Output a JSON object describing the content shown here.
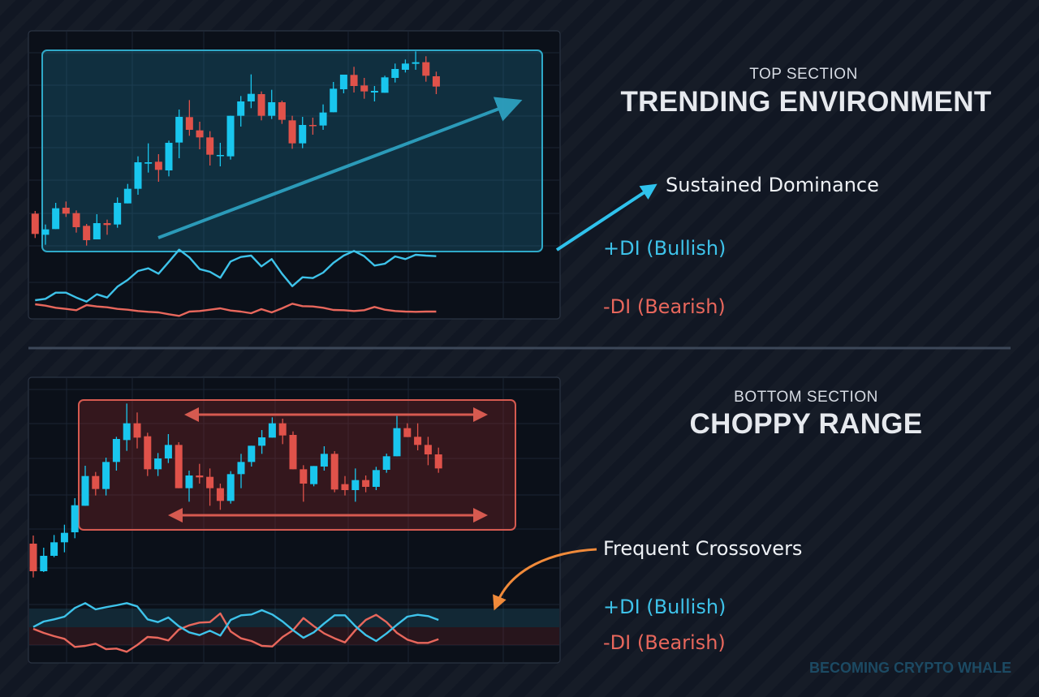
{
  "colors": {
    "bull": "#19c6ee",
    "bear": "#e0524a",
    "plus_di": "#3ec3ea",
    "minus_di": "#e8675c",
    "accent_arrow": "#f08a3a",
    "background": "#111723"
  },
  "top": {
    "kicker": "TOP SECTION",
    "title": "TRENDING ENVIRONMENT",
    "callout": "Sustained Dominance",
    "plus_di_label": "+DI (Bullish)",
    "minus_di_label": "-DI (Bearish)"
  },
  "bottom": {
    "kicker": "BOTTOM SECTION",
    "title": "CHOPPY RANGE",
    "callout": "Frequent Crossovers",
    "plus_di_label": "+DI (Bullish)",
    "minus_di_label": "-DI (Bearish)"
  },
  "watermark": "BECOMING CRYPTO WHALE",
  "chart_data": [
    {
      "type": "candlestick",
      "panel": "top",
      "candles_ohlc": [
        [
          30.0,
          31.0,
          21.0,
          22.5
        ],
        [
          22.2,
          26.0,
          18.5,
          24.2
        ],
        [
          24.3,
          34.0,
          24.3,
          32.0
        ],
        [
          32.2,
          34.5,
          28.8,
          30.0
        ],
        [
          30.2,
          31.2,
          23.0,
          25.0
        ],
        [
          25.5,
          26.2,
          18.2,
          20.2
        ],
        [
          20.5,
          29.8,
          20.5,
          26.5
        ],
        [
          26.5,
          27.8,
          22.2,
          25.8
        ],
        [
          26.0,
          36.0,
          24.8,
          34.0
        ],
        [
          33.8,
          41.0,
          33.8,
          39.2
        ],
        [
          39.2,
          51.2,
          37.0,
          49.0
        ],
        [
          48.5,
          56.0,
          45.2,
          49.0
        ],
        [
          49.2,
          52.0,
          41.8,
          46.2
        ],
        [
          46.0,
          57.0,
          43.8,
          56.2
        ],
        [
          56.3,
          68.5,
          50.5,
          65.8
        ],
        [
          65.7,
          72.0,
          58.8,
          61.0
        ],
        [
          60.8,
          64.0,
          53.8,
          58.2
        ],
        [
          58.2,
          60.5,
          47.8,
          51.8
        ],
        [
          51.3,
          56.2,
          47.5,
          51.7
        ],
        [
          51.2,
          66.2,
          50.0,
          66.2
        ],
        [
          66.2,
          73.5,
          62.2,
          71.5
        ],
        [
          71.5,
          81.5,
          69.0,
          74.3
        ],
        [
          74.2,
          75.2,
          64.5,
          66.2
        ],
        [
          66.2,
          75.8,
          65.0,
          71.2
        ],
        [
          71.2,
          71.8,
          63.2,
          64.7
        ],
        [
          64.5,
          66.2,
          54.0,
          56.0
        ],
        [
          56.0,
          65.8,
          54.2,
          62.8
        ],
        [
          62.8,
          65.5,
          59.2,
          62.4
        ],
        [
          62.6,
          70.4,
          61.0,
          67.4
        ],
        [
          67.5,
          78.7,
          67.5,
          76.2
        ],
        [
          76.0,
          81.4,
          74.5,
          81.4
        ],
        [
          81.3,
          84.3,
          74.8,
          77.2
        ],
        [
          77.4,
          80.2,
          72.5,
          75.2
        ],
        [
          74.8,
          77.2,
          71.5,
          75.4
        ],
        [
          74.7,
          81.0,
          74.7,
          80.4
        ],
        [
          80.2,
          85.5,
          78.5,
          83.5
        ],
        [
          83.2,
          87.0,
          82.2,
          85.5
        ],
        [
          85.4,
          90.0,
          83.2,
          86.0
        ],
        [
          86.0,
          88.2,
          78.8,
          81.0
        ],
        [
          80.8,
          82.5,
          74.2,
          77.0
        ]
      ],
      "plus_di": [
        8.0,
        8.5,
        10.8,
        10.8,
        9.0,
        7.5,
        10.2,
        9.0,
        13.0,
        15.5,
        18.8,
        19.8,
        17.8,
        22.2,
        26.7,
        23.8,
        19.5,
        18.5,
        16.3,
        22.3,
        24.0,
        24.5,
        20.5,
        23.2,
        17.8,
        13.2,
        16.5,
        16.2,
        18.2,
        21.8,
        24.5,
        26.2,
        24.3,
        20.8,
        21.5,
        24.2,
        23.2,
        24.8,
        24.5,
        24.3
      ],
      "minus_di": [
        6.5,
        6.0,
        5.2,
        4.8,
        4.3,
        6.2,
        5.7,
        5.4,
        4.8,
        4.5,
        4.0,
        3.7,
        3.5,
        2.8,
        2.2,
        3.8,
        4.0,
        4.5,
        5.0,
        4.2,
        3.8,
        3.2,
        4.7,
        3.5,
        5.0,
        6.7,
        5.8,
        5.7,
        5.2,
        4.4,
        4.3,
        4.0,
        4.3,
        5.5,
        4.5,
        4.0,
        3.8,
        3.7,
        3.8,
        3.8
      ]
    },
    {
      "type": "candlestick",
      "panel": "bottom",
      "candles_ohlc": [
        [
          37.0,
          40.0,
          24.5,
          26.8
        ],
        [
          26.8,
          35.5,
          26.5,
          32.5
        ],
        [
          32.5,
          40.2,
          32.0,
          37.5
        ],
        [
          37.5,
          44.0,
          33.8,
          41.0
        ],
        [
          41.2,
          53.8,
          39.0,
          51.2
        ],
        [
          51.0,
          65.8,
          51.0,
          62.0
        ],
        [
          62.0,
          63.5,
          54.8,
          57.2
        ],
        [
          57.2,
          68.8,
          54.8,
          67.2
        ],
        [
          67.2,
          76.5,
          64.0,
          75.7
        ],
        [
          75.3,
          88.8,
          71.3,
          81.5
        ],
        [
          81.5,
          85.5,
          72.2,
          76.2
        ],
        [
          76.7,
          78.0,
          62.0,
          64.5
        ],
        [
          64.5,
          70.5,
          62.0,
          68.5
        ],
        [
          68.5,
          77.5,
          66.8,
          73.5
        ],
        [
          73.5,
          74.5,
          57.5,
          57.5
        ],
        [
          57.5,
          64.0,
          52.5,
          62.2
        ],
        [
          62.2,
          66.5,
          59.2,
          61.5
        ],
        [
          61.7,
          64.8,
          51.0,
          57.5
        ],
        [
          57.5,
          59.2,
          49.5,
          52.8
        ],
        [
          52.8,
          63.8,
          51.8,
          62.7
        ],
        [
          62.7,
          70.2,
          57.5,
          67.2
        ],
        [
          67.2,
          73.2,
          65.5,
          73.2
        ],
        [
          73.2,
          79.0,
          70.2,
          76.3
        ],
        [
          76.2,
          83.7,
          76.2,
          81.5
        ],
        [
          81.5,
          83.2,
          73.8,
          77.0
        ],
        [
          77.2,
          78.5,
          64.5,
          64.5
        ],
        [
          64.5,
          66.0,
          52.5,
          59.2
        ],
        [
          59.0,
          65.7,
          58.2,
          65.7
        ],
        [
          65.5,
          73.0,
          64.0,
          70.2
        ],
        [
          70.2,
          71.2,
          56.0,
          57.0
        ],
        [
          59.0,
          62.0,
          54.8,
          56.8
        ],
        [
          56.8,
          64.8,
          52.5,
          60.5
        ],
        [
          60.5,
          62.2,
          56.0,
          58.0
        ],
        [
          58.0,
          65.4,
          56.8,
          64.2
        ],
        [
          64.3,
          70.3,
          63.2,
          69.3
        ],
        [
          69.3,
          84.2,
          69.3,
          79.7
        ],
        [
          79.7,
          81.5,
          76.4,
          76.4
        ],
        [
          76.5,
          81.5,
          71.5,
          73.5
        ],
        [
          73.5,
          76.5,
          66.0,
          70.0
        ],
        [
          70.0,
          72.5,
          63.2,
          64.8
        ]
      ],
      "plus_di": [
        16.2,
        18.2,
        19.0,
        20.0,
        23.2,
        25.0,
        22.7,
        23.5,
        24.2,
        25.0,
        23.8,
        19.0,
        18.0,
        19.7,
        16.5,
        14.2,
        13.2,
        14.8,
        13.0,
        18.8,
        20.5,
        20.8,
        22.4,
        20.8,
        18.2,
        15.0,
        12.2,
        14.2,
        17.5,
        20.5,
        20.5,
        16.5,
        13.2,
        11.0,
        13.8,
        17.0,
        20.0,
        20.7,
        20.2,
        18.8
      ],
      "minus_di": [
        15.5,
        14.0,
        12.8,
        11.8,
        8.8,
        9.2,
        10.0,
        8.0,
        8.2,
        7.0,
        9.5,
        12.5,
        12.2,
        11.2,
        15.2,
        16.8,
        17.8,
        18.0,
        21.2,
        14.5,
        12.0,
        11.0,
        9.2,
        9.0,
        12.5,
        15.0,
        19.5,
        16.5,
        13.8,
        12.0,
        10.5,
        15.0,
        18.8,
        20.7,
        18.0,
        14.0,
        11.5,
        10.3,
        10.3,
        11.7
      ]
    }
  ]
}
